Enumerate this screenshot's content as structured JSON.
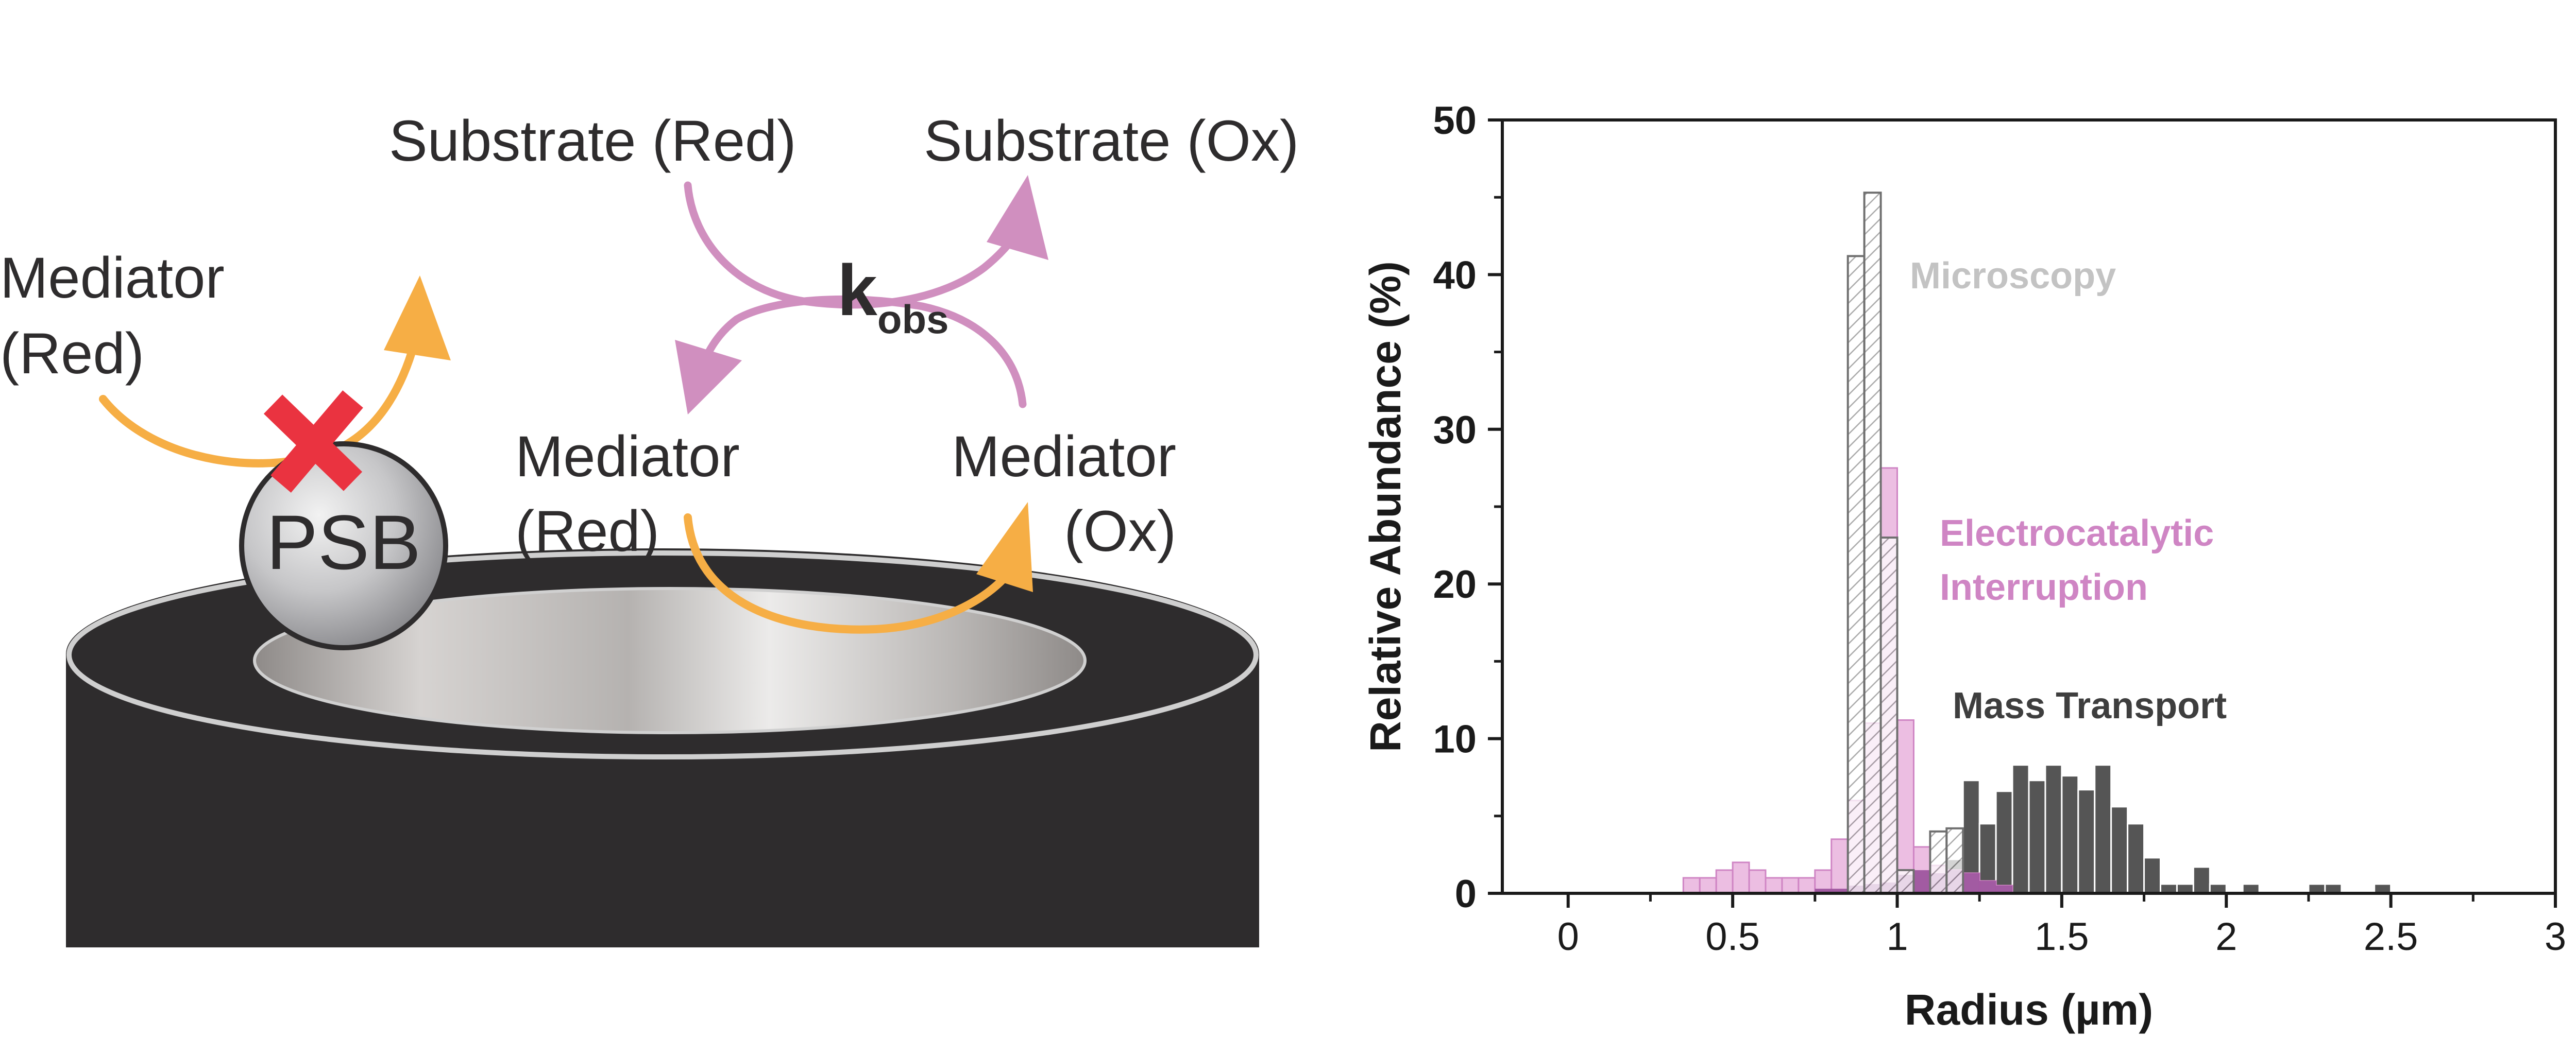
{
  "colors": {
    "electrode_body": "#2e2c2d",
    "electrode_rim": "#cfcfcf",
    "orange_arrow": "#f6ae45",
    "pink_arrow": "#d08fbf",
    "red_cross": "#ea3340",
    "microscopy": "#9e9e9e",
    "electrocatalytic": "#cf85c4",
    "mass_transport": "#555555",
    "overlap_purple": "#9a4f9b"
  },
  "schematic": {
    "substrate_red": "Substrate (Red)",
    "substrate_ox": "Substrate (Ox)",
    "mediator_left_line1": "Mediator",
    "mediator_left_line2": "(Red)",
    "mediator_center_line1": "Mediator",
    "mediator_center_line2": "(Red)",
    "mediator_right_line1": "Mediator",
    "mediator_right_line2": "(Ox)",
    "kobs_main": "k",
    "kobs_sub": "obs",
    "particle_label": "PSB",
    "icons": [
      "orange-curved-arrow-icon",
      "pink-curved-arrow-icon",
      "red-x-icon"
    ]
  },
  "chart_data": {
    "type": "histogram",
    "xlabel": "Radius (µm)",
    "ylabel": "Relative Abundance (%)",
    "xlim": [
      -0.2,
      3.0
    ],
    "ylim": [
      0,
      50
    ],
    "x_ticks": [
      "0",
      "0.5",
      "1",
      "1.5",
      "2",
      "2.5",
      "3"
    ],
    "x_tick_values": [
      0,
      0.5,
      1,
      1.5,
      2,
      2.5,
      3
    ],
    "y_ticks": [
      "0",
      "10",
      "20",
      "30",
      "40",
      "50"
    ],
    "y_tick_values": [
      0,
      10,
      20,
      30,
      40,
      50
    ],
    "bin_width": 0.05,
    "series": [
      {
        "name": "Mass Transport",
        "label": "Mass Transport",
        "color": "#555555",
        "hatched": false,
        "bins": [
          [
            0.775,
            0.3
          ],
          [
            0.825,
            0.3
          ],
          [
            0.875,
            0.5
          ],
          [
            0.925,
            0.6
          ],
          [
            0.975,
            0.7
          ],
          [
            1.025,
            1.2
          ],
          [
            1.075,
            1.5
          ],
          [
            1.125,
            1.3
          ],
          [
            1.175,
            2.2
          ],
          [
            1.225,
            7.3
          ],
          [
            1.275,
            4.5
          ],
          [
            1.325,
            6.6
          ],
          [
            1.375,
            8.3
          ],
          [
            1.425,
            7.3
          ],
          [
            1.475,
            8.3
          ],
          [
            1.525,
            7.6
          ],
          [
            1.575,
            6.7
          ],
          [
            1.625,
            8.3
          ],
          [
            1.675,
            5.6
          ],
          [
            1.725,
            4.5
          ],
          [
            1.775,
            2.3
          ],
          [
            1.825,
            0.6
          ],
          [
            1.875,
            0.6
          ],
          [
            1.925,
            1.7
          ],
          [
            1.975,
            0.6
          ],
          [
            2.075,
            0.6
          ],
          [
            2.275,
            0.6
          ],
          [
            2.325,
            0.6
          ],
          [
            2.475,
            0.6
          ]
        ]
      },
      {
        "name": "Electrocatalytic Interruption",
        "label_line1": "Electrocatalytic",
        "label_line2": "Interruption",
        "color": "#e9b3dd",
        "edge": "#cf85c4",
        "hatched": false,
        "bins": [
          [
            0.375,
            1.0
          ],
          [
            0.425,
            1.0
          ],
          [
            0.475,
            1.5
          ],
          [
            0.525,
            2.0
          ],
          [
            0.575,
            1.5
          ],
          [
            0.625,
            1.0
          ],
          [
            0.675,
            1.0
          ],
          [
            0.725,
            1.0
          ],
          [
            0.775,
            1.5
          ],
          [
            0.825,
            3.5
          ],
          [
            0.875,
            6.0
          ],
          [
            0.925,
            11.0
          ],
          [
            0.975,
            27.5
          ],
          [
            1.025,
            11.2
          ],
          [
            1.075,
            3.0
          ],
          [
            1.125,
            1.8
          ],
          [
            1.175,
            1.5
          ],
          [
            1.225,
            1.3
          ],
          [
            1.275,
            0.8
          ],
          [
            1.325,
            0.5
          ]
        ]
      },
      {
        "name": "Microscopy",
        "label": "Microscopy",
        "color": "#9e9e9e",
        "hatched": true,
        "bins": [
          [
            0.875,
            41.2
          ],
          [
            0.925,
            45.3
          ],
          [
            0.975,
            23.0
          ],
          [
            1.025,
            1.5
          ],
          [
            1.125,
            4.0
          ],
          [
            1.175,
            4.2
          ]
        ]
      }
    ]
  }
}
